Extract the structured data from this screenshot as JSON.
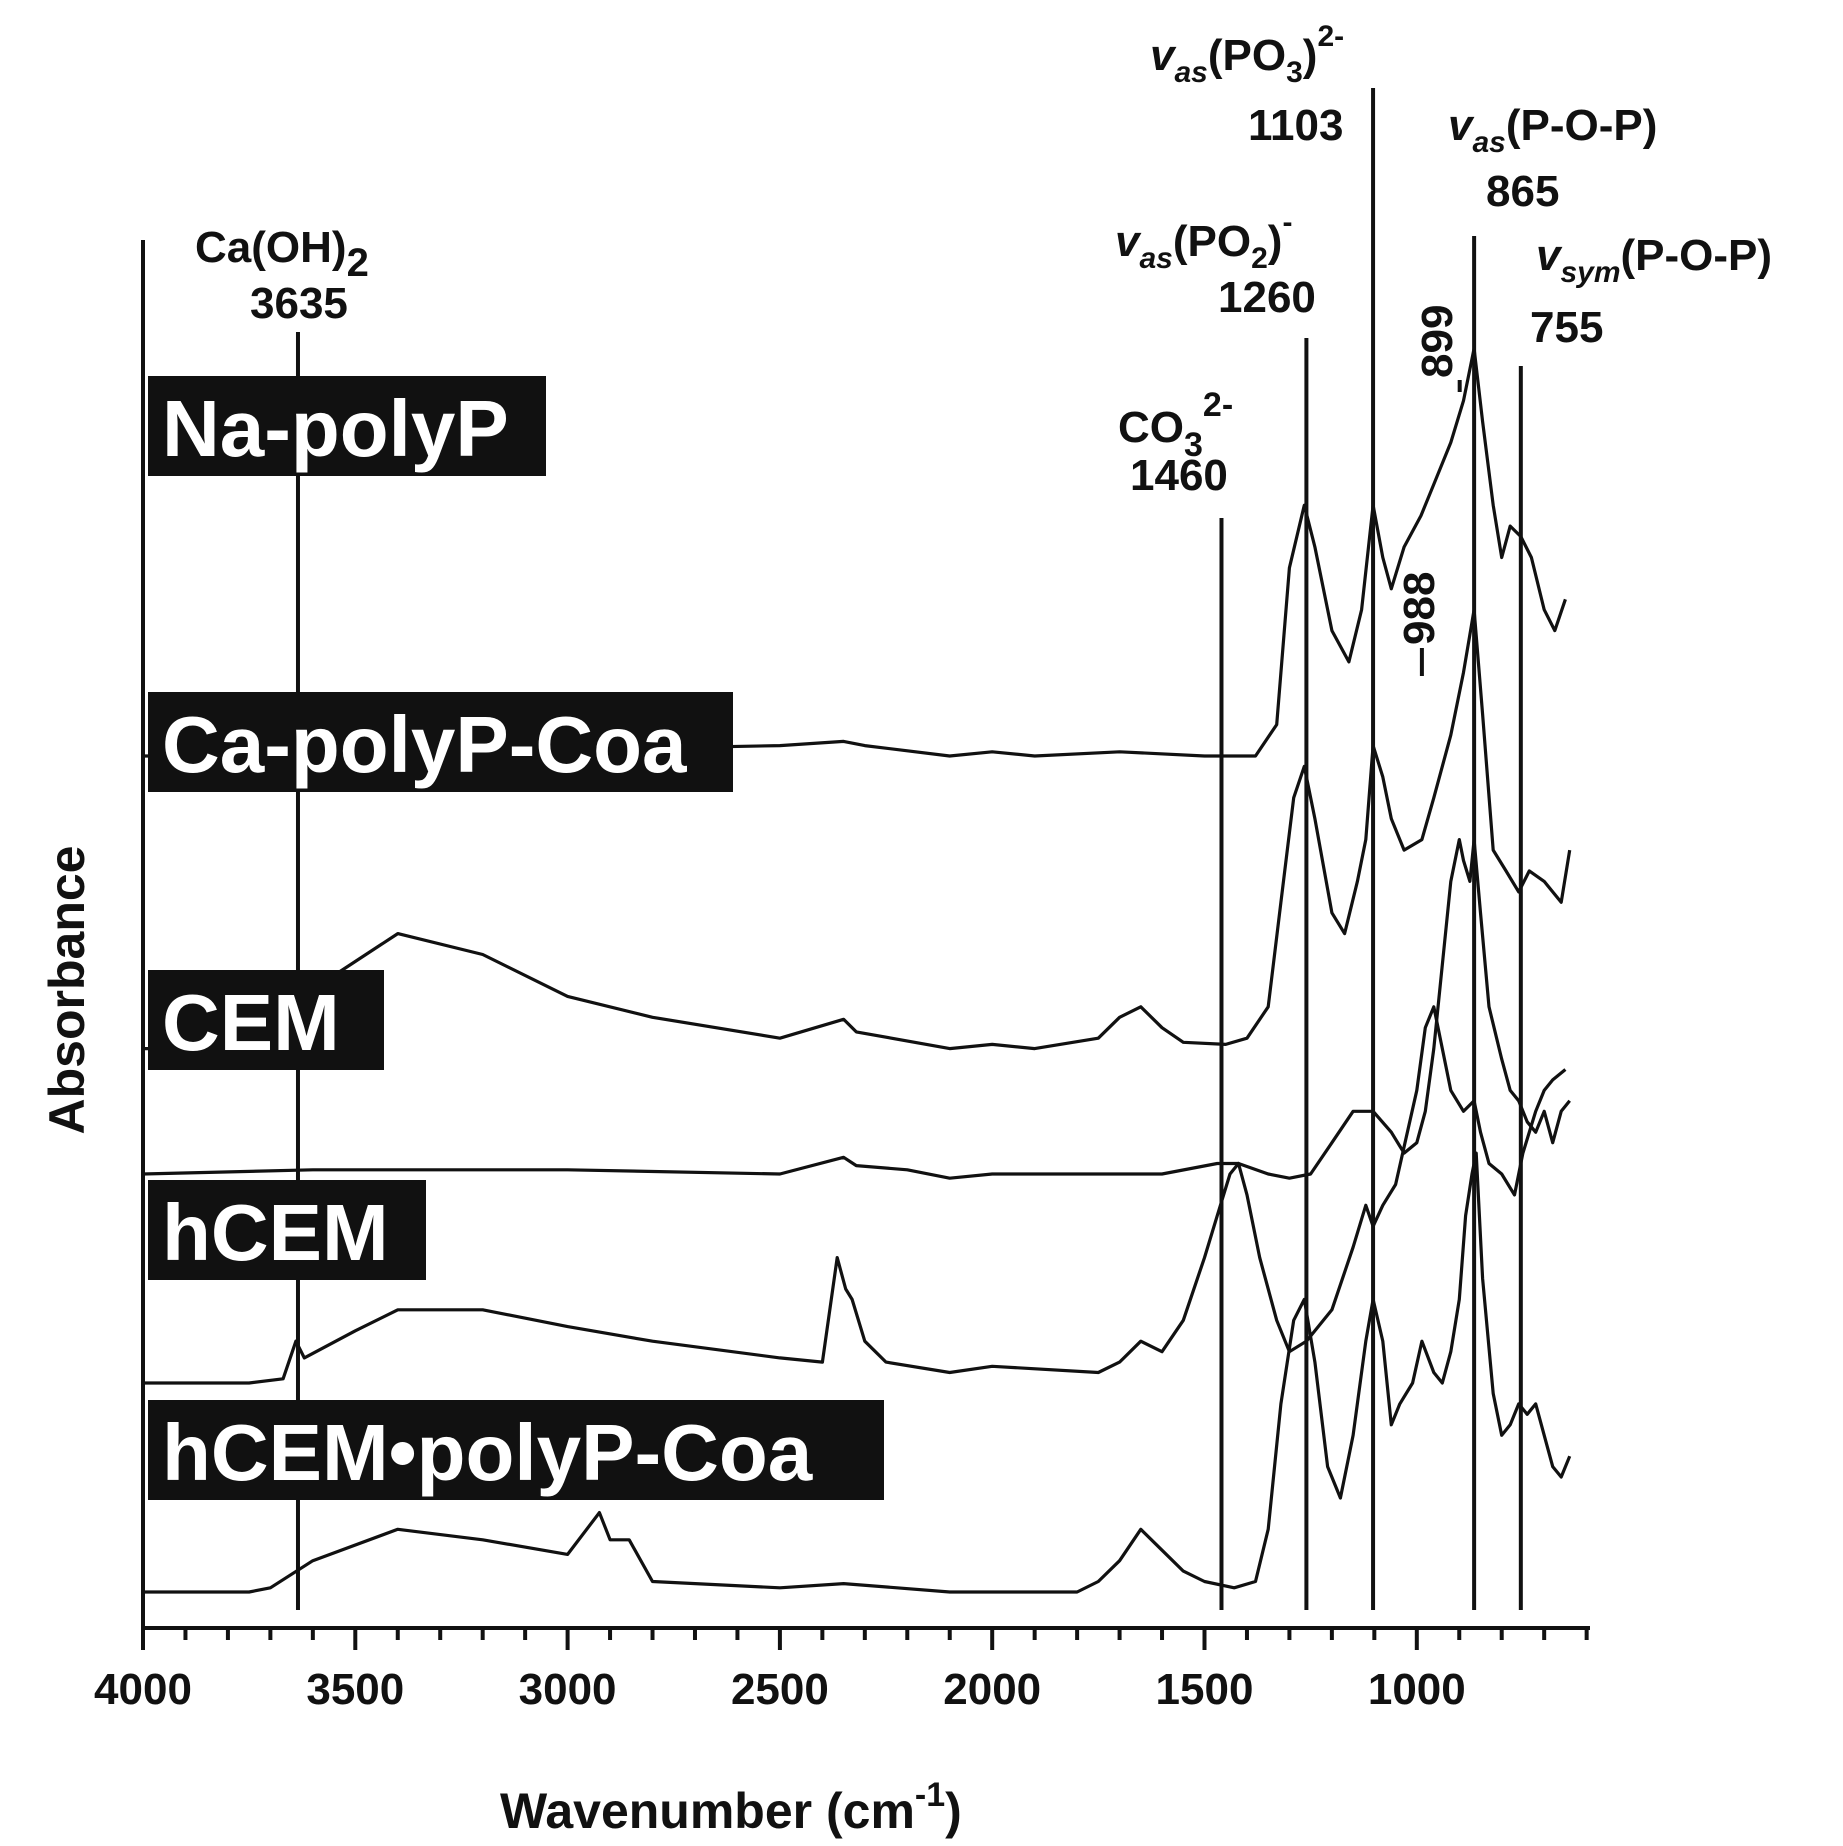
{
  "chart_data": {
    "type": "line",
    "xlabel": "Wavenumber (cm",
    "xlabel_sup": "-1",
    "xlabel_tail": ")",
    "ylabel": "Absorbance",
    "xlim": [
      4000,
      600
    ],
    "x_reversed": true,
    "x_ticks": [
      4000,
      3500,
      3000,
      2500,
      2000,
      1500,
      1000
    ],
    "minor_tick_step": 100,
    "grid": false,
    "series": [
      {
        "name": "Na-polyP",
        "offset": 4.0,
        "points": [
          [
            4000,
            0.0
          ],
          [
            3700,
            0.0
          ],
          [
            3400,
            0.03
          ],
          [
            3000,
            0.03
          ],
          [
            2500,
            0.05
          ],
          [
            2350,
            0.07
          ],
          [
            2300,
            0.05
          ],
          [
            2100,
            0.0
          ],
          [
            2000,
            0.02
          ],
          [
            1900,
            0.0
          ],
          [
            1700,
            0.02
          ],
          [
            1500,
            0.0
          ],
          [
            1380,
            0.0
          ],
          [
            1330,
            0.15
          ],
          [
            1300,
            0.9
          ],
          [
            1265,
            1.2
          ],
          [
            1240,
            1.0
          ],
          [
            1200,
            0.6
          ],
          [
            1160,
            0.45
          ],
          [
            1130,
            0.7
          ],
          [
            1103,
            1.2
          ],
          [
            1080,
            0.95
          ],
          [
            1060,
            0.8
          ],
          [
            1030,
            1.0
          ],
          [
            990,
            1.15
          ],
          [
            960,
            1.3
          ],
          [
            920,
            1.5
          ],
          [
            890,
            1.7
          ],
          [
            865,
            1.95
          ],
          [
            845,
            1.6
          ],
          [
            820,
            1.2
          ],
          [
            800,
            0.95
          ],
          [
            780,
            1.1
          ],
          [
            755,
            1.05
          ],
          [
            730,
            0.95
          ],
          [
            700,
            0.7
          ],
          [
            675,
            0.6
          ],
          [
            650,
            0.75
          ]
        ]
      },
      {
        "name": "Ca-polyP-Coa",
        "offset": 2.6,
        "points": [
          [
            4000,
            0.0
          ],
          [
            3800,
            0.0
          ],
          [
            3650,
            0.03
          ],
          [
            3550,
            0.35
          ],
          [
            3400,
            0.55
          ],
          [
            3200,
            0.45
          ],
          [
            3000,
            0.25
          ],
          [
            2800,
            0.15
          ],
          [
            2500,
            0.05
          ],
          [
            2350,
            0.14
          ],
          [
            2320,
            0.08
          ],
          [
            2100,
            0.0
          ],
          [
            2000,
            0.02
          ],
          [
            1900,
            0.0
          ],
          [
            1750,
            0.05
          ],
          [
            1700,
            0.15
          ],
          [
            1650,
            0.2
          ],
          [
            1600,
            0.1
          ],
          [
            1550,
            0.03
          ],
          [
            1450,
            0.02
          ],
          [
            1400,
            0.05
          ],
          [
            1350,
            0.2
          ],
          [
            1320,
            0.7
          ],
          [
            1290,
            1.2
          ],
          [
            1265,
            1.35
          ],
          [
            1240,
            1.1
          ],
          [
            1200,
            0.65
          ],
          [
            1170,
            0.55
          ],
          [
            1140,
            0.8
          ],
          [
            1120,
            1.0
          ],
          [
            1103,
            1.45
          ],
          [
            1080,
            1.3
          ],
          [
            1060,
            1.1
          ],
          [
            1030,
            0.95
          ],
          [
            988,
            1.0
          ],
          [
            960,
            1.2
          ],
          [
            920,
            1.5
          ],
          [
            890,
            1.8
          ],
          [
            865,
            2.1
          ],
          [
            845,
            1.6
          ],
          [
            820,
            0.95
          ],
          [
            790,
            0.85
          ],
          [
            760,
            0.75
          ],
          [
            735,
            0.85
          ],
          [
            700,
            0.8
          ],
          [
            660,
            0.7
          ],
          [
            640,
            0.95
          ]
        ]
      },
      {
        "name": "CEM",
        "offset": 2.0,
        "points": [
          [
            4000,
            0.0
          ],
          [
            3600,
            0.02
          ],
          [
            3000,
            0.02
          ],
          [
            2500,
            0.0
          ],
          [
            2350,
            0.08
          ],
          [
            2320,
            0.04
          ],
          [
            2200,
            0.02
          ],
          [
            2100,
            -0.02
          ],
          [
            2000,
            0.0
          ],
          [
            1600,
            0.0
          ],
          [
            1470,
            0.05
          ],
          [
            1420,
            0.05
          ],
          [
            1350,
            0.0
          ],
          [
            1300,
            -0.02
          ],
          [
            1250,
            0.0
          ],
          [
            1200,
            0.15
          ],
          [
            1150,
            0.3
          ],
          [
            1103,
            0.3
          ],
          [
            1060,
            0.2
          ],
          [
            1030,
            0.1
          ],
          [
            1000,
            0.15
          ],
          [
            980,
            0.3
          ],
          [
            960,
            0.6
          ],
          [
            940,
            1.0
          ],
          [
            920,
            1.4
          ],
          [
            900,
            1.6
          ],
          [
            890,
            1.5
          ],
          [
            875,
            1.4
          ],
          [
            865,
            1.6
          ],
          [
            850,
            1.25
          ],
          [
            830,
            0.8
          ],
          [
            800,
            0.55
          ],
          [
            780,
            0.4
          ],
          [
            760,
            0.35
          ],
          [
            740,
            0.25
          ],
          [
            720,
            0.2
          ],
          [
            700,
            0.3
          ],
          [
            680,
            0.15
          ],
          [
            660,
            0.3
          ],
          [
            640,
            0.35
          ]
        ]
      },
      {
        "name": "hCEM",
        "offset": 1.0,
        "points": [
          [
            4000,
            0.0
          ],
          [
            3750,
            0.0
          ],
          [
            3670,
            0.02
          ],
          [
            3640,
            0.2
          ],
          [
            3620,
            0.12
          ],
          [
            3500,
            0.25
          ],
          [
            3400,
            0.35
          ],
          [
            3200,
            0.35
          ],
          [
            3000,
            0.27
          ],
          [
            2800,
            0.2
          ],
          [
            2500,
            0.12
          ],
          [
            2400,
            0.1
          ],
          [
            2365,
            0.6
          ],
          [
            2345,
            0.45
          ],
          [
            2330,
            0.4
          ],
          [
            2300,
            0.2
          ],
          [
            2250,
            0.1
          ],
          [
            2100,
            0.05
          ],
          [
            2000,
            0.08
          ],
          [
            1750,
            0.05
          ],
          [
            1700,
            0.1
          ],
          [
            1650,
            0.2
          ],
          [
            1600,
            0.15
          ],
          [
            1550,
            0.3
          ],
          [
            1500,
            0.6
          ],
          [
            1470,
            0.8
          ],
          [
            1440,
            1.0
          ],
          [
            1420,
            1.05
          ],
          [
            1400,
            0.9
          ],
          [
            1370,
            0.6
          ],
          [
            1330,
            0.3
          ],
          [
            1300,
            0.15
          ],
          [
            1260,
            0.2
          ],
          [
            1200,
            0.35
          ],
          [
            1150,
            0.65
          ],
          [
            1120,
            0.85
          ],
          [
            1103,
            0.75
          ],
          [
            1080,
            0.85
          ],
          [
            1050,
            0.95
          ],
          [
            1000,
            1.4
          ],
          [
            980,
            1.7
          ],
          [
            960,
            1.8
          ],
          [
            940,
            1.6
          ],
          [
            920,
            1.4
          ],
          [
            890,
            1.3
          ],
          [
            865,
            1.35
          ],
          [
            850,
            1.2
          ],
          [
            830,
            1.05
          ],
          [
            800,
            1.0
          ],
          [
            770,
            0.9
          ],
          [
            750,
            1.1
          ],
          [
            720,
            1.3
          ],
          [
            700,
            1.4
          ],
          [
            680,
            1.45
          ],
          [
            650,
            1.5
          ]
        ]
      },
      {
        "name": "hCEM•polyP-Coa",
        "offset": 0.0,
        "points": [
          [
            4000,
            0.0
          ],
          [
            3750,
            0.0
          ],
          [
            3700,
            0.02
          ],
          [
            3600,
            0.15
          ],
          [
            3400,
            0.3
          ],
          [
            3200,
            0.25
          ],
          [
            3000,
            0.18
          ],
          [
            2925,
            0.38
          ],
          [
            2900,
            0.25
          ],
          [
            2855,
            0.25
          ],
          [
            2800,
            0.05
          ],
          [
            2500,
            0.02
          ],
          [
            2350,
            0.04
          ],
          [
            2100,
            0.0
          ],
          [
            1800,
            0.0
          ],
          [
            1750,
            0.05
          ],
          [
            1700,
            0.15
          ],
          [
            1650,
            0.3
          ],
          [
            1600,
            0.2
          ],
          [
            1550,
            0.1
          ],
          [
            1500,
            0.05
          ],
          [
            1430,
            0.02
          ],
          [
            1380,
            0.05
          ],
          [
            1350,
            0.3
          ],
          [
            1320,
            0.9
          ],
          [
            1290,
            1.3
          ],
          [
            1265,
            1.4
          ],
          [
            1240,
            1.1
          ],
          [
            1210,
            0.6
          ],
          [
            1180,
            0.45
          ],
          [
            1150,
            0.75
          ],
          [
            1120,
            1.2
          ],
          [
            1103,
            1.4
          ],
          [
            1080,
            1.2
          ],
          [
            1060,
            0.8
          ],
          [
            1040,
            0.9
          ],
          [
            1010,
            1.0
          ],
          [
            988,
            1.2
          ],
          [
            960,
            1.05
          ],
          [
            940,
            1.0
          ],
          [
            920,
            1.15
          ],
          [
            900,
            1.4
          ],
          [
            885,
            1.8
          ],
          [
            870,
            2.0
          ],
          [
            860,
            2.1
          ],
          [
            845,
            1.5
          ],
          [
            820,
            0.95
          ],
          [
            800,
            0.75
          ],
          [
            780,
            0.8
          ],
          [
            760,
            0.9
          ],
          [
            740,
            0.85
          ],
          [
            720,
            0.9
          ],
          [
            700,
            0.75
          ],
          [
            680,
            0.6
          ],
          [
            660,
            0.55
          ],
          [
            640,
            0.65
          ]
        ]
      }
    ],
    "band_markers": [
      {
        "x": 3635,
        "lines": [
          "Ca(OH)",
          "3635"
        ],
        "sub": "2"
      },
      {
        "x": 1460,
        "lines": [
          "CO",
          "1460"
        ],
        "sub": "3",
        "sup": "2-"
      },
      {
        "x": 1260,
        "lines": [
          "(PO",
          "1260"
        ],
        "nu": "v",
        "nu_sub": "as",
        "sub": "2",
        "sup": "-",
        "close": ")"
      },
      {
        "x": 1103,
        "lines": [
          "(PO",
          "1103"
        ],
        "nu": "v",
        "nu_sub": "as",
        "sub": "3",
        "sup": "2-",
        "close": ")"
      },
      {
        "x": 865,
        "lines": [
          "(P-O-P)",
          "865"
        ],
        "nu": "v",
        "nu_sub": "as"
      },
      {
        "x": 755,
        "lines": [
          "(P-O-P)",
          "755"
        ],
        "nu": "v",
        "nu_sub": "sym"
      }
    ],
    "peak_annotations": [
      {
        "label": "899",
        "x": 899
      },
      {
        "label": "988",
        "x": 988
      }
    ]
  }
}
